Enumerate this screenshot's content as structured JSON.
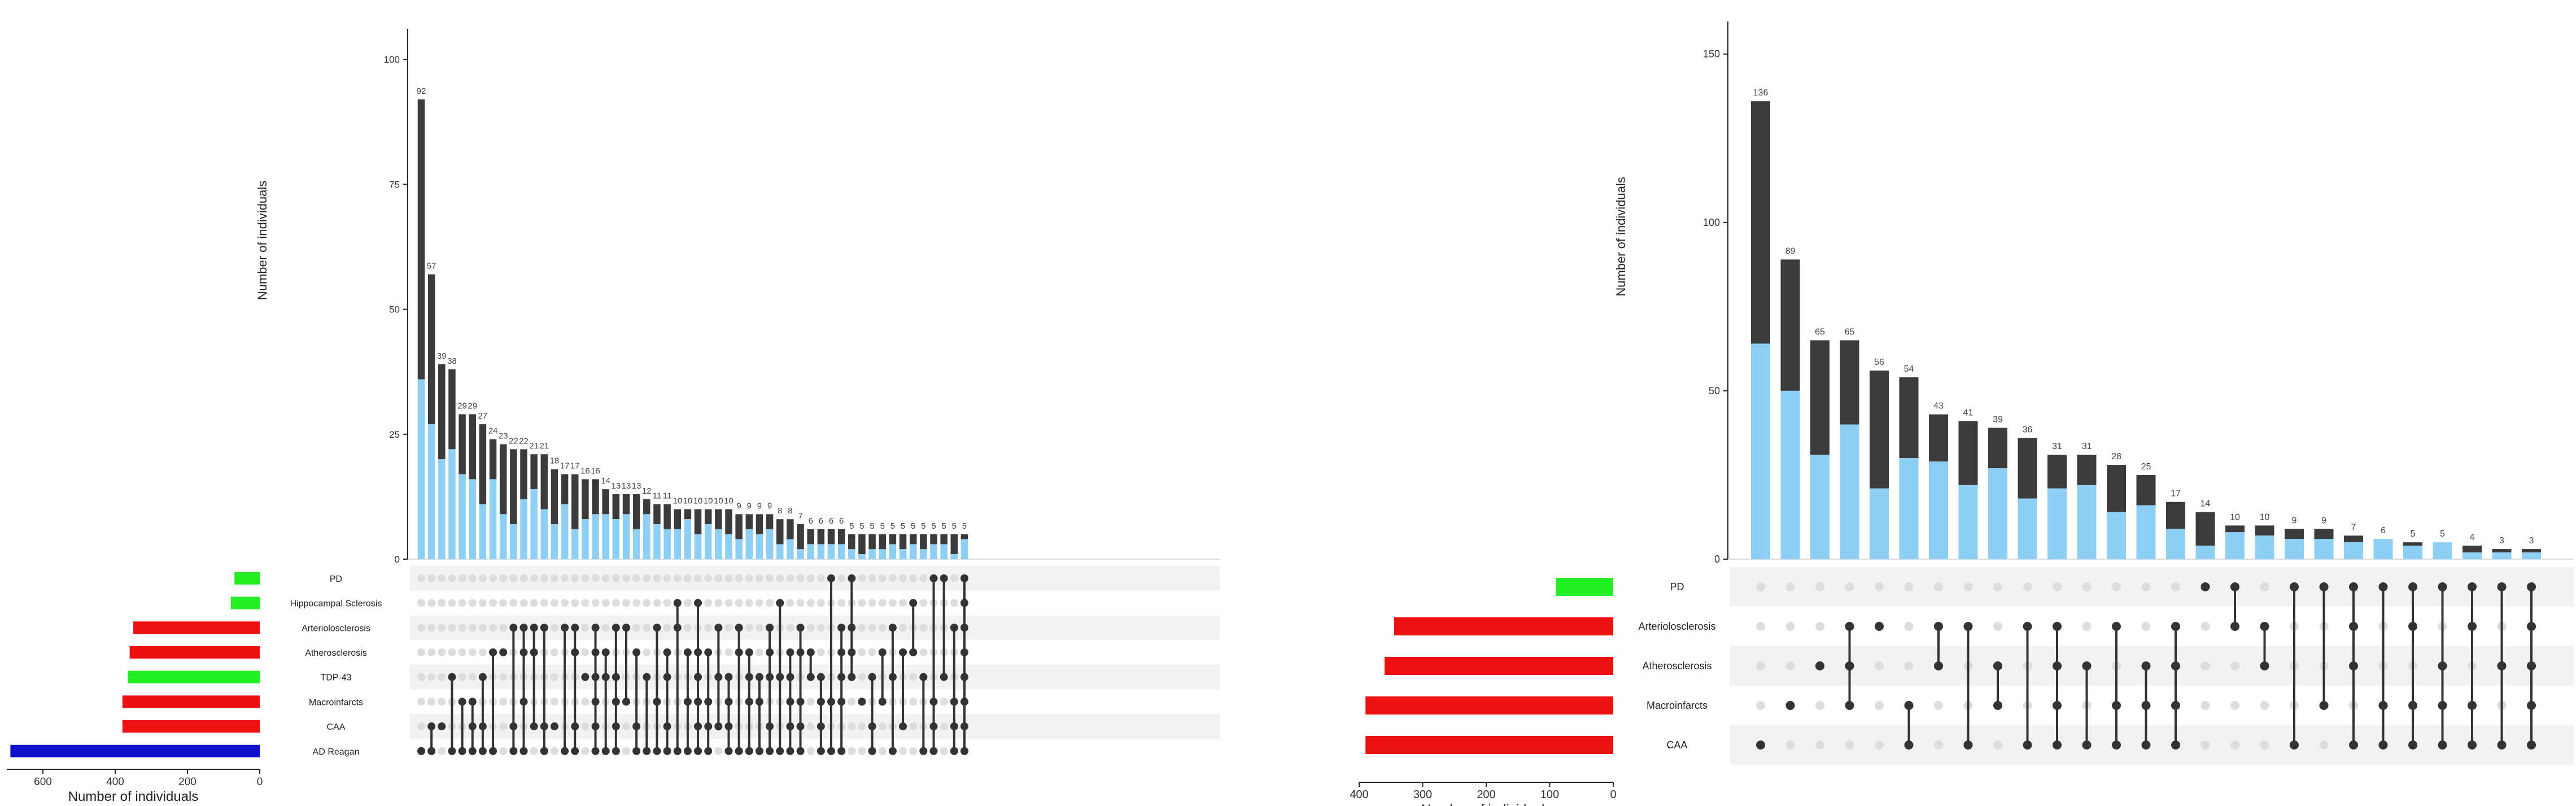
{
  "colors": {
    "bar_dark": "#3b3b3b",
    "bar_light": "#8ecff5",
    "dot_on": "#333333",
    "dot_off": "#dddddd",
    "stripe": "#f2f2f2",
    "green": "#22ee22",
    "red": "#ee1111",
    "blue": "#1010cc"
  },
  "chart_data": [
    {
      "type": "bar",
      "ylabel": "Number of individuals",
      "ylim": [
        0,
        105
      ],
      "yticks": [
        0,
        25,
        50,
        75,
        100
      ],
      "set_size_label": "Number of individuals",
      "set_size_ticks": [
        0,
        200,
        400,
        600
      ],
      "set_size_xlim": [
        0,
        700
      ],
      "sets": [
        {
          "name": "PD",
          "size": 70,
          "color": "green"
        },
        {
          "name": "Hippocampal Sclerosis",
          "size": 80,
          "color": "green"
        },
        {
          "name": "Arteriolosclerosis",
          "size": 350,
          "color": "red"
        },
        {
          "name": "Atherosclerosis",
          "size": 360,
          "color": "red"
        },
        {
          "name": "TDP-43",
          "size": 365,
          "color": "green"
        },
        {
          "name": "Macroinfarcts",
          "size": 380,
          "color": "red"
        },
        {
          "name": "CAA",
          "size": 380,
          "color": "red"
        },
        {
          "name": "AD Reagan",
          "size": 690,
          "color": "blue"
        }
      ],
      "intersections": [
        {
          "total": 92,
          "light": 36,
          "members": [
            7
          ]
        },
        {
          "total": 57,
          "light": 27,
          "members": [
            6,
            7
          ]
        },
        {
          "total": 39,
          "light": 20,
          "members": [
            6
          ]
        },
        {
          "total": 38,
          "light": 22,
          "members": [
            4,
            7
          ]
        },
        {
          "total": 29,
          "light": 17,
          "members": [
            5,
            7
          ]
        },
        {
          "total": 29,
          "light": 16,
          "members": [
            5,
            6,
            7
          ]
        },
        {
          "total": 27,
          "light": 11,
          "members": [
            4,
            6,
            7
          ]
        },
        {
          "total": 24,
          "light": 16,
          "members": [
            3,
            7
          ]
        },
        {
          "total": 23,
          "light": 9,
          "members": [
            3
          ]
        },
        {
          "total": 22,
          "light": 7,
          "members": [
            2,
            6,
            7
          ]
        },
        {
          "total": 22,
          "light": 12,
          "members": [
            2,
            3,
            5,
            7
          ]
        },
        {
          "total": 21,
          "light": 14,
          "members": [
            2,
            3,
            6
          ]
        },
        {
          "total": 21,
          "light": 10,
          "members": [
            2,
            6,
            7
          ]
        },
        {
          "total": 18,
          "light": 7,
          "members": [
            6
          ]
        },
        {
          "total": 17,
          "light": 11,
          "members": [
            2,
            7
          ]
        },
        {
          "total": 17,
          "light": 6,
          "members": [
            2,
            3,
            6,
            7
          ]
        },
        {
          "total": 16,
          "light": 8,
          "members": [
            4
          ]
        },
        {
          "total": 16,
          "light": 9,
          "members": [
            2,
            3,
            4,
            5,
            6,
            7
          ]
        },
        {
          "total": 14,
          "light": 9,
          "members": [
            3,
            4,
            7
          ]
        },
        {
          "total": 13,
          "light": 8,
          "members": [
            2,
            4,
            5,
            6,
            7
          ]
        },
        {
          "total": 13,
          "light": 9,
          "members": [
            2,
            5
          ]
        },
        {
          "total": 13,
          "light": 6,
          "members": [
            3,
            6,
            7
          ]
        },
        {
          "total": 12,
          "light": 9,
          "members": [
            4,
            7
          ]
        },
        {
          "total": 11,
          "light": 7,
          "members": [
            2,
            5,
            7
          ]
        },
        {
          "total": 11,
          "light": 6,
          "members": [
            3,
            4,
            6,
            7
          ]
        },
        {
          "total": 10,
          "light": 6,
          "members": [
            1,
            2,
            7
          ]
        },
        {
          "total": 10,
          "light": 8,
          "members": [
            3,
            5,
            7
          ]
        },
        {
          "total": 10,
          "light": 5,
          "members": [
            1,
            3,
            4,
            5,
            6,
            7
          ]
        },
        {
          "total": 10,
          "light": 7,
          "members": [
            3,
            5,
            6,
            7
          ]
        },
        {
          "total": 10,
          "light": 6,
          "members": [
            2,
            4,
            6
          ]
        },
        {
          "total": 10,
          "light": 5,
          "members": [
            4,
            5,
            6,
            7
          ]
        },
        {
          "total": 9,
          "light": 4,
          "members": [
            2,
            3,
            7
          ]
        },
        {
          "total": 9,
          "light": 6,
          "members": [
            3,
            4,
            5,
            7
          ]
        },
        {
          "total": 9,
          "light": 5,
          "members": [
            4,
            5,
            7
          ]
        },
        {
          "total": 9,
          "light": 6,
          "members": [
            2,
            3,
            4,
            6,
            7
          ]
        },
        {
          "total": 8,
          "light": 3,
          "members": [
            1,
            4,
            7
          ]
        },
        {
          "total": 8,
          "light": 4,
          "members": [
            3,
            4,
            5,
            6,
            7
          ]
        },
        {
          "total": 7,
          "light": 2,
          "members": [
            2,
            3,
            5,
            6,
            7
          ]
        },
        {
          "total": 6,
          "light": 3,
          "members": [
            3,
            4
          ]
        },
        {
          "total": 6,
          "light": 3,
          "members": [
            4,
            5,
            6,
            7
          ]
        },
        {
          "total": 6,
          "light": 3,
          "members": [
            0,
            5,
            7
          ]
        },
        {
          "total": 6,
          "light": 3,
          "members": [
            2,
            3,
            4,
            5,
            7
          ]
        },
        {
          "total": 5,
          "light": 2,
          "members": [
            0,
            2,
            3,
            4
          ]
        },
        {
          "total": 5,
          "light": 1,
          "members": [
            5
          ]
        },
        {
          "total": 5,
          "light": 2,
          "members": [
            4,
            6,
            7
          ]
        },
        {
          "total": 5,
          "light": 2,
          "members": [
            3,
            5
          ]
        },
        {
          "total": 5,
          "light": 3,
          "members": [
            2,
            4,
            7
          ]
        },
        {
          "total": 5,
          "light": 2,
          "members": [
            3,
            6
          ]
        },
        {
          "total": 5,
          "light": 3,
          "members": [
            1,
            3
          ]
        },
        {
          "total": 5,
          "light": 2,
          "members": [
            4,
            7
          ]
        },
        {
          "total": 5,
          "light": 3,
          "members": [
            0,
            5,
            6,
            7
          ]
        },
        {
          "total": 5,
          "light": 3,
          "members": [
            0,
            4
          ]
        },
        {
          "total": 5,
          "light": 1,
          "members": [
            2,
            5,
            6,
            7
          ]
        },
        {
          "total": 5,
          "light": 4,
          "members": [
            0,
            1,
            2,
            3,
            4,
            5,
            6,
            7
          ]
        }
      ]
    },
    {
      "type": "bar",
      "ylabel": "Number of individuals",
      "ylim": [
        0,
        158
      ],
      "yticks": [
        0,
        50,
        100,
        150
      ],
      "set_size_label": "Number of individuals",
      "set_size_ticks": [
        0,
        100,
        200,
        300,
        400
      ],
      "set_size_xlim": [
        0,
        400
      ],
      "sets": [
        {
          "name": "PD",
          "size": 90,
          "color": "green"
        },
        {
          "name": "Arteriolosclerosis",
          "size": 345,
          "color": "red"
        },
        {
          "name": "Atherosclerosis",
          "size": 360,
          "color": "red"
        },
        {
          "name": "Macroinfarcts",
          "size": 390,
          "color": "red"
        },
        {
          "name": "CAA",
          "size": 390,
          "color": "red"
        }
      ],
      "intersections": [
        {
          "total": 136,
          "light": 64,
          "members": [
            4
          ]
        },
        {
          "total": 89,
          "light": 50,
          "members": [
            3
          ]
        },
        {
          "total": 65,
          "light": 31,
          "members": [
            2
          ]
        },
        {
          "total": 65,
          "light": 40,
          "members": [
            1,
            2,
            3
          ]
        },
        {
          "total": 56,
          "light": 21,
          "members": [
            1
          ]
        },
        {
          "total": 54,
          "light": 30,
          "members": [
            3,
            4
          ]
        },
        {
          "total": 43,
          "light": 29,
          "members": [
            1,
            2
          ]
        },
        {
          "total": 41,
          "light": 22,
          "members": [
            1,
            4
          ]
        },
        {
          "total": 39,
          "light": 27,
          "members": [
            2,
            3
          ]
        },
        {
          "total": 36,
          "light": 18,
          "members": [
            1,
            4
          ]
        },
        {
          "total": 31,
          "light": 21,
          "members": [
            1,
            2,
            3,
            4
          ]
        },
        {
          "total": 31,
          "light": 22,
          "members": [
            2,
            4
          ]
        },
        {
          "total": 28,
          "light": 14,
          "members": [
            1,
            3,
            4
          ]
        },
        {
          "total": 25,
          "light": 16,
          "members": [
            2,
            3,
            4
          ]
        },
        {
          "total": 17,
          "light": 9,
          "members": [
            1,
            2,
            3,
            4
          ]
        },
        {
          "total": 14,
          "light": 4,
          "members": [
            0
          ]
        },
        {
          "total": 10,
          "light": 8,
          "members": [
            0,
            1
          ]
        },
        {
          "total": 10,
          "light": 7,
          "members": [
            1,
            2
          ]
        },
        {
          "total": 9,
          "light": 6,
          "members": [
            0,
            4
          ]
        },
        {
          "total": 9,
          "light": 6,
          "members": [
            0,
            3
          ]
        },
        {
          "total": 7,
          "light": 5,
          "members": [
            0,
            1,
            2,
            4
          ]
        },
        {
          "total": 6,
          "light": 6,
          "members": [
            0,
            3,
            4
          ]
        },
        {
          "total": 5,
          "light": 4,
          "members": [
            0,
            1,
            3,
            4
          ]
        },
        {
          "total": 5,
          "light": 5,
          "members": [
            0,
            2,
            3,
            4
          ]
        },
        {
          "total": 4,
          "light": 2,
          "members": [
            0,
            1,
            3,
            4
          ]
        },
        {
          "total": 3,
          "light": 2,
          "members": [
            0,
            2,
            4
          ]
        },
        {
          "total": 3,
          "light": 2,
          "members": [
            0,
            1,
            2,
            3,
            4
          ]
        }
      ]
    }
  ]
}
